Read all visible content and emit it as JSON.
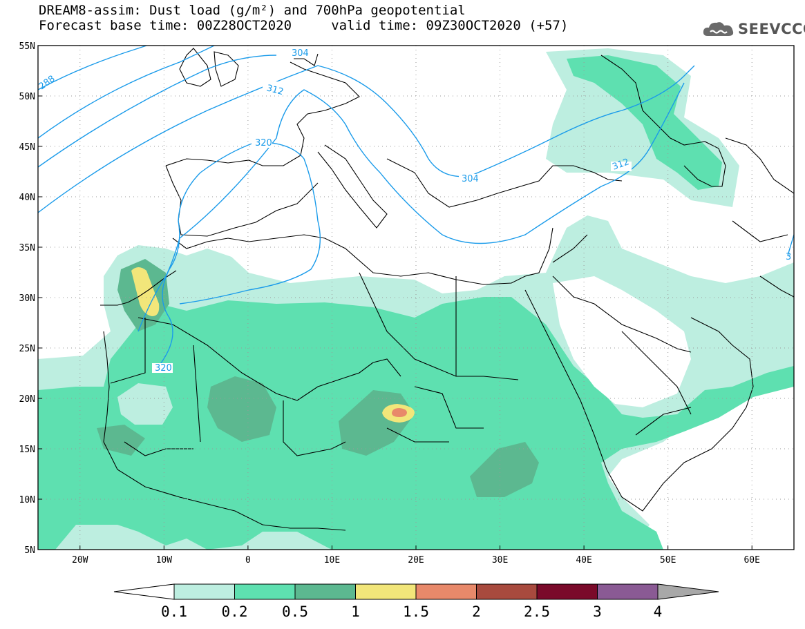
{
  "header": {
    "line1": "DREAM8-assim: Dust load (g/m²) and 700hPa geopotential",
    "line2": "Forecast base time: 00Z28OCT2020     valid time: 09Z30OCT2020 (+57)"
  },
  "brand": {
    "name": "SEEVCCC",
    "icon": "cloud-logo-icon",
    "color": "#666666"
  },
  "map": {
    "lon_range": [
      -25,
      65
    ],
    "lat_range": [
      5,
      55
    ],
    "lat_ticks": [
      "55N",
      "50N",
      "45N",
      "40N",
      "35N",
      "30N",
      "25N",
      "20N",
      "15N",
      "10N",
      "5N"
    ],
    "lon_ticks": [
      "20W",
      "10W",
      "0",
      "10E",
      "20E",
      "30E",
      "40E",
      "50E",
      "60E"
    ],
    "contour_labels": [
      "288",
      "304",
      "312",
      "320",
      "312",
      "304",
      "320",
      "3"
    ],
    "contour_color": "#1a9bea",
    "coastline_color": "#000000",
    "grid": "dotted"
  },
  "colorbar": {
    "labels": [
      "0.1",
      "0.2",
      "0.5",
      "1",
      "1.5",
      "2",
      "2.5",
      "3",
      "4"
    ],
    "colors": [
      "#bdeee0",
      "#5ee0b0",
      "#5cb890",
      "#f2e67a",
      "#e8896a",
      "#a84a3e",
      "#7a0a2a",
      "#8a5a94"
    ],
    "left_arrow": "#ffffff",
    "right_arrow": "#a8a8a8"
  }
}
